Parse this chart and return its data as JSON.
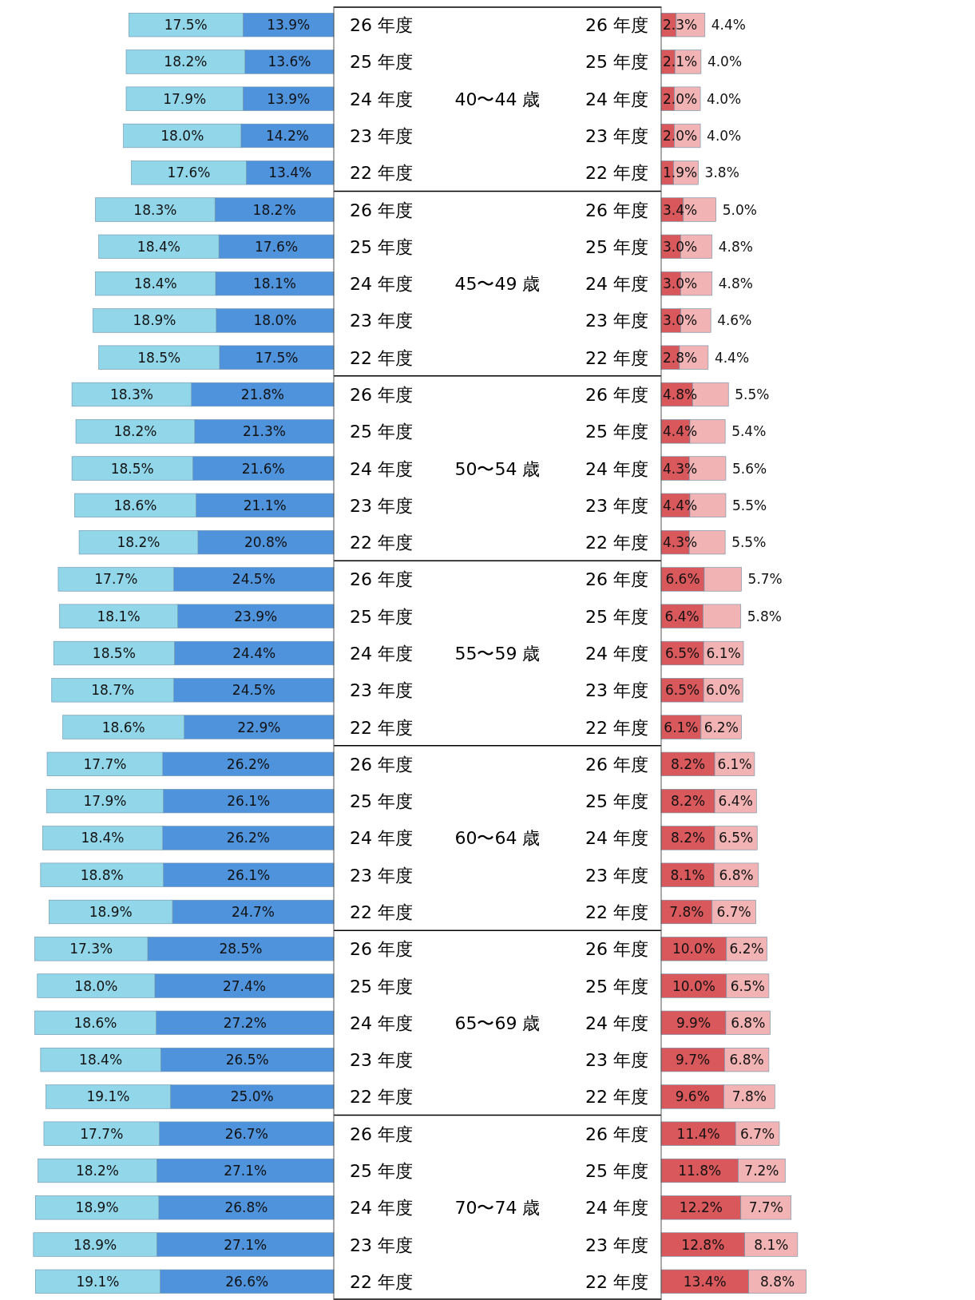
{
  "chart_data": [
    {
      "type": "bar",
      "orientation": "horizontal",
      "stacked": true,
      "tick_labels": "y",
      "categories": [
        "26 年度",
        "25 年度",
        "24 年度",
        "23 年度",
        "22 年度",
        "26 年度",
        "25 年度",
        "24 年度",
        "23 年度",
        "22 年度",
        "26 年度",
        "25 年度",
        "24 年度",
        "23 年度",
        "22 年度",
        "26 年度",
        "25 年度",
        "24 年度",
        "23 年度",
        "22 年度",
        "26 年度",
        "25 年度",
        "24 年度",
        "23 年度",
        "22 年度",
        "26 年度",
        "25 年度",
        "24 年度",
        "23 年度",
        "22 年度",
        "26 年度",
        "25 年度",
        "24 年度",
        "23 年度",
        "22 年度"
      ],
      "annotations": [
        "40〜44 歳",
        "45〜49 歳",
        "50〜54 歳",
        "55〜59 歳",
        "60〜64 歳",
        "65〜69 歳",
        "70〜74 歳"
      ],
      "series": [
        {
          "color": "#4f93dc",
          "values": [
            13.9,
            13.6,
            13.9,
            14.2,
            13.4,
            18.2,
            17.6,
            18.1,
            18.0,
            17.5,
            21.8,
            21.3,
            21.6,
            21.1,
            20.8,
            24.5,
            23.9,
            24.4,
            24.5,
            22.9,
            26.2,
            26.1,
            26.2,
            26.1,
            24.7,
            28.5,
            27.4,
            27.2,
            26.5,
            25.0,
            26.7,
            27.1,
            26.8,
            27.1,
            26.6
          ],
          "value_labels": [
            "13.9%",
            "13.6%",
            "13.9%",
            "14.2%",
            "13.4%",
            "18.2%",
            "17.6%",
            "18.1%",
            "18.0%",
            "17.5%",
            "21.8%",
            "21.3%",
            "21.6%",
            "21.1%",
            "20.8%",
            "24.5%",
            "23.9%",
            "24.4%",
            "24.5%",
            "22.9%",
            "26.2%",
            "26.1%",
            "26.2%",
            "26.1%",
            "24.7%",
            "28.5%",
            "27.4%",
            "27.2%",
            "26.5%",
            "25.0%",
            "26.7%",
            "27.1%",
            "26.8%",
            "27.1%",
            "26.6%"
          ]
        },
        {
          "color": "#92d6ea",
          "values": [
            17.5,
            18.2,
            17.9,
            18.0,
            17.6,
            18.3,
            18.4,
            18.4,
            18.9,
            18.5,
            18.3,
            18.2,
            18.5,
            18.6,
            18.2,
            17.7,
            18.1,
            18.5,
            18.7,
            18.6,
            17.7,
            17.9,
            18.4,
            18.8,
            18.9,
            17.3,
            18.0,
            18.6,
            18.4,
            19.1,
            17.7,
            18.2,
            18.9,
            18.9,
            19.1
          ],
          "value_labels": [
            "17.5%",
            "18.2%",
            "17.9%",
            "18.0%",
            "17.6%",
            "18.3%",
            "18.4%",
            "18.4%",
            "18.9%",
            "18.5%",
            "18.3%",
            "18.2%",
            "18.5%",
            "18.6%",
            "18.2%",
            "17.7%",
            "18.1%",
            "18.5%",
            "18.7%",
            "18.6%",
            "17.7%",
            "17.9%",
            "18.4%",
            "18.8%",
            "18.9%",
            "17.3%",
            "18.0%",
            "18.6%",
            "18.4%",
            "19.1%",
            "17.7%",
            "18.2%",
            "18.9%",
            "18.9%",
            "19.1%"
          ]
        }
      ]
    },
    {
      "type": "bar",
      "orientation": "horizontal",
      "stacked": true,
      "tick_labels": "y",
      "categories": [
        "26 年度",
        "25 年度",
        "24 年度",
        "23 年度",
        "22 年度",
        "26 年度",
        "25 年度",
        "24 年度",
        "23 年度",
        "22 年度",
        "26 年度",
        "25 年度",
        "24 年度",
        "23 年度",
        "22 年度",
        "26 年度",
        "25 年度",
        "24 年度",
        "23 年度",
        "22 年度",
        "26 年度",
        "25 年度",
        "24 年度",
        "23 年度",
        "22 年度",
        "26 年度",
        "25 年度",
        "24 年度",
        "23 年度",
        "22 年度",
        "26 年度",
        "25 年度",
        "24 年度",
        "23 年度",
        "22 年度"
      ],
      "series": [
        {
          "color": "#d9585b",
          "values": [
            2.3,
            2.1,
            2.0,
            2.0,
            1.9,
            3.4,
            3.0,
            3.0,
            3.0,
            2.8,
            4.8,
            4.4,
            4.3,
            4.4,
            4.3,
            6.6,
            6.4,
            6.5,
            6.5,
            6.1,
            8.2,
            8.2,
            8.2,
            8.1,
            7.8,
            10.0,
            10.0,
            9.9,
            9.7,
            9.6,
            11.4,
            11.8,
            12.2,
            12.8,
            13.4
          ],
          "value_labels": [
            "2.3%",
            "2.1%",
            "2.0%",
            "2.0%",
            "1.9%",
            "3.4%",
            "3.0%",
            "3.0%",
            "3.0%",
            "2.8%",
            "4.8%",
            "4.4%",
            "4.3%",
            "4.4%",
            "4.3%",
            "6.6%",
            "6.4%",
            "6.5%",
            "6.5%",
            "6.1%",
            "8.2%",
            "8.2%",
            "8.2%",
            "8.1%",
            "7.8%",
            "10.0%",
            "10.0%",
            "9.9%",
            "9.7%",
            "9.6%",
            "11.4%",
            "11.8%",
            "12.2%",
            "12.8%",
            "13.4%"
          ]
        },
        {
          "color": "#f1b3b3",
          "values": [
            4.4,
            4.0,
            4.0,
            4.0,
            3.8,
            5.0,
            4.8,
            4.8,
            4.6,
            4.4,
            5.5,
            5.4,
            5.6,
            5.5,
            5.5,
            5.7,
            5.8,
            6.1,
            6.0,
            6.2,
            6.1,
            6.4,
            6.5,
            6.8,
            6.7,
            6.2,
            6.5,
            6.8,
            6.8,
            7.8,
            6.7,
            7.2,
            7.7,
            8.1,
            8.8
          ],
          "value_labels": [
            "4.4%",
            "4.0%",
            "4.0%",
            "4.0%",
            "3.8%",
            "5.0%",
            "4.8%",
            "4.8%",
            "4.6%",
            "4.4%",
            "5.5%",
            "5.4%",
            "5.6%",
            "5.5%",
            "5.5%",
            "5.7%",
            "5.8%",
            "6.1%",
            "6.0%",
            "6.2%",
            "6.1%",
            "6.4%",
            "6.5%",
            "6.8%",
            "6.7%",
            "6.2%",
            "6.5%",
            "6.8%",
            "6.8%",
            "7.8%",
            "6.7%",
            "7.2%",
            "7.7%",
            "8.1%",
            "8.8%"
          ]
        }
      ]
    }
  ]
}
